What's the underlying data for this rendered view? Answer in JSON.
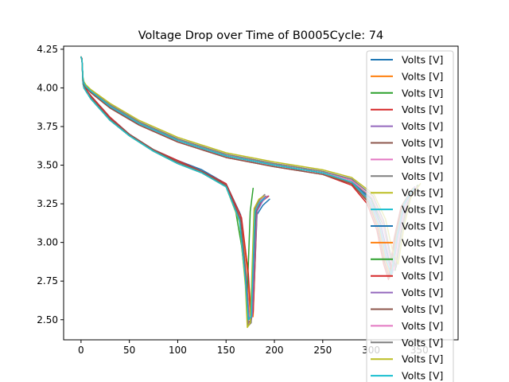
{
  "chart_data": {
    "type": "line",
    "title": "Voltage Drop over Time of B0005Cycle: 74",
    "xlabel": "",
    "ylabel": "",
    "xlim": [
      -18,
      390
    ],
    "ylim": [
      2.37,
      4.27
    ],
    "x_ticks": [
      0,
      50,
      100,
      150,
      200,
      250,
      300,
      350
    ],
    "x_tick_labels": [
      "0",
      "50",
      "100",
      "150",
      "200",
      "250",
      "300",
      "350"
    ],
    "y_ticks": [
      2.5,
      2.75,
      3.0,
      3.25,
      3.5,
      3.75,
      4.0,
      4.25
    ],
    "y_tick_labels": [
      "2.50",
      "2.75",
      "3.00",
      "3.25",
      "3.50",
      "3.75",
      "4.00",
      "4.25"
    ],
    "grid": false,
    "legend_position": "top-right",
    "legend_entries": [
      "Volts [V]",
      "Volts [V]",
      "Volts [V]",
      "Volts [V]",
      "Volts [V]",
      "Volts [V]",
      "Volts [V]",
      "Volts [V]",
      "Volts [V]",
      "Volts [V]",
      "Volts [V]",
      "Volts [V]",
      "Volts [V]",
      "Volts [V]",
      "Volts [V]",
      "Volts [V]",
      "Volts [V]",
      "Volts [V]",
      "Volts [V]",
      "Volts [V]"
    ],
    "palette": [
      "#1f77b4",
      "#ff7f0e",
      "#2ca02c",
      "#d62728",
      "#9467bd",
      "#8c564b",
      "#e377c2",
      "#7f7f7f",
      "#bcbd22",
      "#17becf"
    ],
    "series": [
      {
        "x": [
          0,
          1,
          2,
          3,
          5,
          10,
          20,
          30,
          50,
          75,
          100,
          125,
          150,
          165,
          172,
          175,
          178,
          182,
          188,
          195
        ],
        "y": [
          4.2,
          4.19,
          4.05,
          4.01,
          3.99,
          3.95,
          3.88,
          3.81,
          3.7,
          3.6,
          3.53,
          3.47,
          3.38,
          3.18,
          2.85,
          2.55,
          2.55,
          3.18,
          3.24,
          3.28
        ]
      },
      {
        "x": [
          0,
          1,
          2,
          3,
          5,
          10,
          20,
          30,
          50,
          75,
          100,
          125,
          150,
          165,
          172,
          175,
          178,
          182,
          186,
          190
        ],
        "y": [
          4.2,
          4.18,
          4.04,
          4.01,
          3.98,
          3.94,
          3.87,
          3.8,
          3.7,
          3.6,
          3.52,
          3.46,
          3.37,
          3.15,
          2.82,
          2.53,
          2.52,
          3.2,
          3.26,
          3.29
        ]
      },
      {
        "x": [
          0,
          1,
          2,
          3,
          5,
          10,
          20,
          30,
          50,
          75,
          100,
          125,
          150,
          160,
          166,
          170,
          172,
          175,
          178
        ],
        "y": [
          4.2,
          4.18,
          4.03,
          4.0,
          3.98,
          3.93,
          3.86,
          3.8,
          3.69,
          3.59,
          3.52,
          3.46,
          3.36,
          3.2,
          2.98,
          2.75,
          2.68,
          3.2,
          3.35
        ]
      },
      {
        "x": [
          0,
          1,
          2,
          3,
          5,
          10,
          20,
          30,
          50,
          75,
          100,
          125,
          150,
          166,
          173,
          176,
          178,
          182,
          188,
          194
        ],
        "y": [
          4.2,
          4.19,
          4.04,
          4.01,
          3.99,
          3.95,
          3.88,
          3.81,
          3.7,
          3.6,
          3.53,
          3.46,
          3.38,
          3.16,
          2.8,
          2.5,
          2.55,
          3.22,
          3.27,
          3.3
        ]
      },
      {
        "x": [
          0,
          1,
          2,
          3,
          5,
          10,
          20,
          30,
          50,
          75,
          100,
          125,
          150,
          165,
          171,
          174,
          177,
          182,
          188,
          193
        ],
        "y": [
          4.2,
          4.18,
          4.04,
          4.0,
          3.98,
          3.94,
          3.87,
          3.8,
          3.7,
          3.6,
          3.52,
          3.46,
          3.37,
          3.15,
          2.78,
          2.5,
          2.52,
          3.2,
          3.27,
          3.3
        ]
      },
      {
        "x": [
          0,
          1,
          2,
          3,
          5,
          10,
          20,
          30,
          50,
          75,
          100,
          125,
          150,
          165,
          171,
          173,
          176,
          181,
          186,
          191
        ],
        "y": [
          4.2,
          4.18,
          4.04,
          4.0,
          3.98,
          3.94,
          3.87,
          3.8,
          3.7,
          3.6,
          3.52,
          3.46,
          3.37,
          3.15,
          2.75,
          2.48,
          2.5,
          3.22,
          3.28,
          3.3
        ]
      },
      {
        "x": [
          0,
          1,
          2,
          3,
          5,
          10,
          20,
          30,
          50,
          75,
          100,
          125,
          150,
          164,
          170,
          173,
          176,
          180,
          185,
          190
        ],
        "y": [
          4.2,
          4.18,
          4.03,
          4.0,
          3.98,
          3.93,
          3.86,
          3.79,
          3.69,
          3.59,
          3.51,
          3.45,
          3.36,
          3.14,
          2.75,
          2.47,
          2.49,
          3.21,
          3.27,
          3.3
        ]
      },
      {
        "x": [
          0,
          1,
          2,
          3,
          5,
          10,
          20,
          30,
          50,
          75,
          100,
          125,
          150,
          164,
          170,
          173,
          176,
          180,
          185,
          190
        ],
        "y": [
          4.2,
          4.18,
          4.03,
          4.0,
          3.98,
          3.93,
          3.86,
          3.79,
          3.69,
          3.59,
          3.51,
          3.45,
          3.36,
          3.14,
          2.74,
          2.46,
          2.48,
          3.22,
          3.28,
          3.31
        ]
      },
      {
        "x": [
          0,
          1,
          2,
          3,
          5,
          10,
          20,
          30,
          50,
          75,
          100,
          125,
          150,
          164,
          170,
          172,
          175,
          179,
          184,
          189
        ],
        "y": [
          4.2,
          4.18,
          4.03,
          4.0,
          3.98,
          3.93,
          3.86,
          3.79,
          3.69,
          3.59,
          3.51,
          3.45,
          3.36,
          3.13,
          2.72,
          2.45,
          2.48,
          3.22,
          3.28,
          3.3
        ]
      },
      {
        "x": [
          0,
          1,
          2,
          3,
          5,
          10,
          20,
          30,
          50,
          75,
          100,
          125,
          150,
          164,
          170,
          173,
          176,
          180,
          185,
          190
        ],
        "y": [
          4.2,
          4.18,
          4.03,
          4.0,
          3.98,
          3.93,
          3.86,
          3.79,
          3.69,
          3.59,
          3.51,
          3.45,
          3.36,
          3.14,
          2.76,
          2.5,
          2.52,
          3.2,
          3.26,
          3.29
        ]
      },
      {
        "x": [
          0,
          1,
          2,
          3,
          5,
          10,
          30,
          60,
          100,
          150,
          200,
          250,
          280,
          300,
          310,
          318,
          322,
          328,
          335,
          345
        ],
        "y": [
          4.2,
          4.18,
          4.06,
          4.03,
          4.01,
          3.98,
          3.88,
          3.77,
          3.66,
          3.56,
          3.5,
          3.45,
          3.39,
          3.28,
          3.12,
          2.9,
          2.8,
          3.05,
          3.25,
          3.35
        ]
      },
      {
        "x": [
          0,
          1,
          2,
          3,
          5,
          10,
          30,
          60,
          100,
          150,
          200,
          250,
          280,
          298,
          308,
          315,
          320,
          326,
          333,
          343
        ],
        "y": [
          4.2,
          4.18,
          4.06,
          4.03,
          4.01,
          3.98,
          3.88,
          3.77,
          3.66,
          3.56,
          3.5,
          3.45,
          3.38,
          3.26,
          3.1,
          2.88,
          2.78,
          3.05,
          3.25,
          3.35
        ]
      },
      {
        "x": [
          0,
          1,
          2,
          3,
          5,
          10,
          30,
          60,
          100,
          150,
          200,
          250,
          280,
          300,
          312,
          320,
          325,
          331,
          338,
          348
        ],
        "y": [
          4.2,
          4.18,
          4.06,
          4.03,
          4.01,
          3.98,
          3.89,
          3.78,
          3.67,
          3.57,
          3.51,
          3.46,
          3.4,
          3.29,
          3.12,
          2.92,
          2.82,
          3.08,
          3.27,
          3.37
        ]
      },
      {
        "x": [
          0,
          1,
          2,
          3,
          5,
          10,
          30,
          60,
          100,
          150,
          200,
          250,
          280,
          296,
          306,
          313,
          318,
          324,
          331,
          341
        ],
        "y": [
          4.2,
          4.18,
          4.05,
          4.02,
          4.0,
          3.97,
          3.87,
          3.76,
          3.65,
          3.55,
          3.49,
          3.44,
          3.37,
          3.25,
          3.08,
          2.86,
          2.76,
          3.03,
          3.23,
          3.33
        ]
      },
      {
        "x": [
          0,
          1,
          2,
          3,
          5,
          10,
          30,
          60,
          100,
          150,
          200,
          250,
          280,
          299,
          310,
          317,
          322,
          328,
          335,
          345
        ],
        "y": [
          4.2,
          4.18,
          4.06,
          4.03,
          4.01,
          3.98,
          3.88,
          3.77,
          3.66,
          3.56,
          3.5,
          3.45,
          3.39,
          3.27,
          3.11,
          2.89,
          2.8,
          3.06,
          3.26,
          3.36
        ]
      },
      {
        "x": [
          0,
          1,
          2,
          3,
          5,
          10,
          30,
          60,
          100,
          150,
          200,
          250,
          280,
          297,
          307,
          314,
          319,
          325,
          332,
          342
        ],
        "y": [
          4.2,
          4.18,
          4.05,
          4.02,
          4.0,
          3.97,
          3.87,
          3.76,
          3.65,
          3.55,
          3.49,
          3.44,
          3.38,
          3.26,
          3.09,
          2.87,
          2.77,
          3.04,
          3.24,
          3.34
        ]
      },
      {
        "x": [
          0,
          1,
          2,
          3,
          5,
          10,
          30,
          60,
          100,
          150,
          200,
          250,
          280,
          301,
          312,
          319,
          324,
          330,
          337,
          347
        ],
        "y": [
          4.2,
          4.18,
          4.06,
          4.03,
          4.01,
          3.98,
          3.89,
          3.78,
          3.67,
          3.57,
          3.51,
          3.46,
          3.4,
          3.29,
          3.13,
          2.91,
          2.82,
          3.07,
          3.26,
          3.36
        ]
      },
      {
        "x": [
          0,
          1,
          2,
          3,
          5,
          10,
          30,
          60,
          100,
          150,
          200,
          250,
          280,
          302,
          313,
          320,
          326,
          332,
          339,
          349
        ],
        "y": [
          4.2,
          4.18,
          4.06,
          4.03,
          4.01,
          3.98,
          3.89,
          3.78,
          3.67,
          3.57,
          3.51,
          3.46,
          3.41,
          3.3,
          3.14,
          2.93,
          2.84,
          3.08,
          3.27,
          3.37
        ]
      },
      {
        "x": [
          0,
          1,
          2,
          3,
          5,
          10,
          30,
          60,
          100,
          150,
          200,
          250,
          280,
          303,
          315,
          322,
          328,
          334,
          341,
          351
        ],
        "y": [
          4.2,
          4.18,
          4.07,
          4.04,
          4.02,
          3.99,
          3.9,
          3.79,
          3.68,
          3.58,
          3.52,
          3.47,
          3.42,
          3.31,
          3.15,
          2.95,
          2.86,
          3.1,
          3.29,
          3.38
        ]
      },
      {
        "x": [
          0,
          1,
          2,
          3,
          5,
          10,
          30,
          60,
          100,
          150,
          200,
          250,
          280,
          298,
          309,
          316,
          321,
          327,
          334,
          344
        ],
        "y": [
          4.2,
          4.18,
          4.06,
          4.03,
          4.01,
          3.98,
          3.88,
          3.77,
          3.66,
          3.56,
          3.5,
          3.45,
          3.39,
          3.27,
          3.1,
          2.88,
          2.79,
          3.05,
          3.25,
          3.35
        ]
      }
    ]
  }
}
